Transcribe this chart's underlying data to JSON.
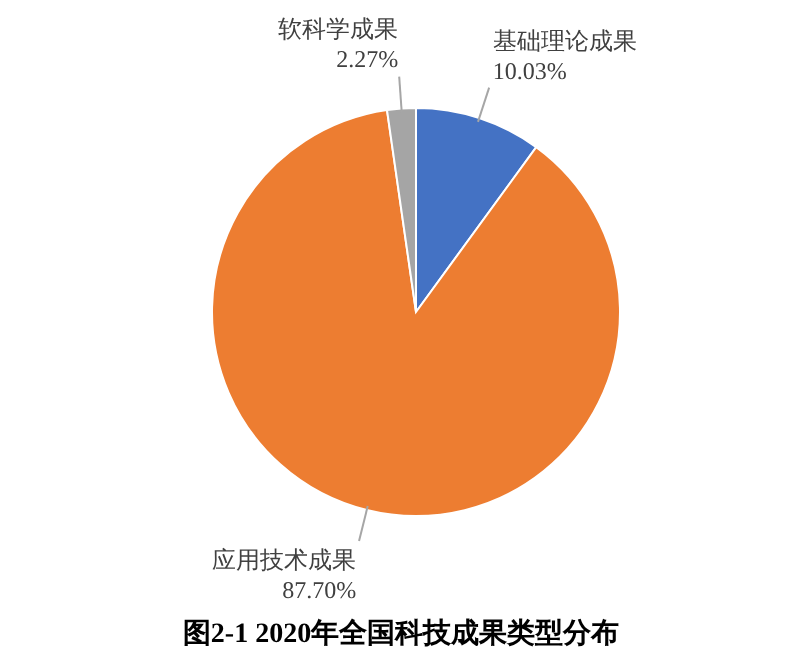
{
  "chart_data": {
    "type": "pie",
    "title": "图2-1  2020年全国科技成果类型分布",
    "categories": [
      "基础理论成果",
      "应用技术成果",
      "软科学成果"
    ],
    "values": [
      10.03,
      87.7,
      2.27
    ],
    "colors": [
      "#4472c4",
      "#ed7d31",
      "#a5a5a5"
    ],
    "value_labels": [
      "10.03%",
      "87.70%",
      "2.27%"
    ]
  }
}
